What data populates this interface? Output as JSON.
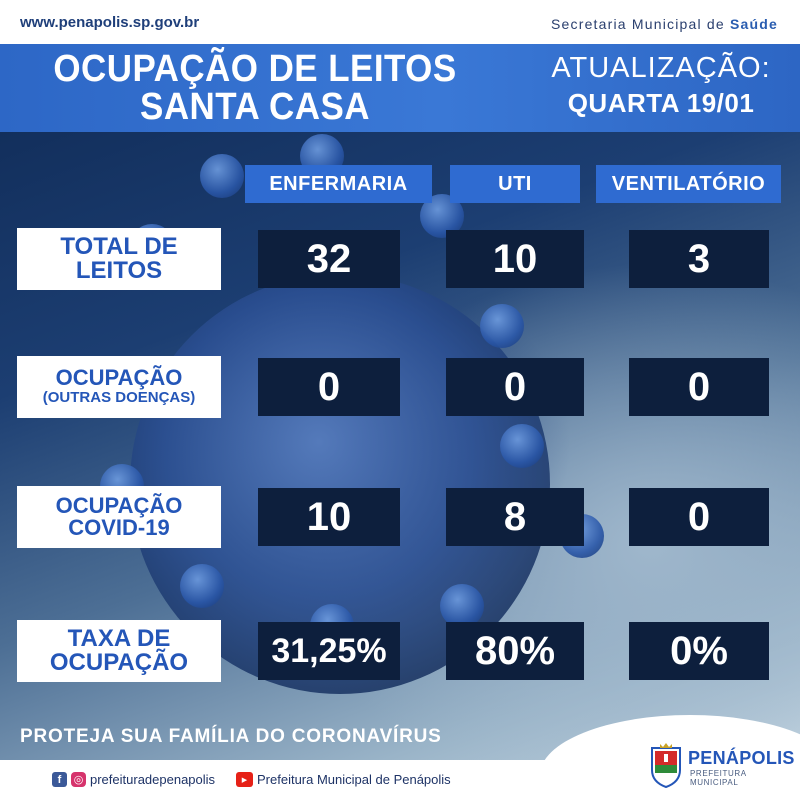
{
  "top": {
    "site_url": "www.penapolis.sp.gov.br",
    "secretaria_prefix": "Secretaria Municipal de ",
    "secretaria_highlight": "Saúde"
  },
  "header": {
    "title_line1": "OCUPAÇÃO DE LEITOS",
    "title_line2": "SANTA CASA",
    "update_label": "ATUALIZAÇÃO:",
    "update_date": "QUARTA 19/01"
  },
  "columns": [
    "ENFERMARIA",
    "UTI",
    "VENTILATÓRIO"
  ],
  "rows": [
    {
      "label_line1": "TOTAL DE",
      "label_line2": "LEITOS",
      "values": [
        "32",
        "10",
        "3"
      ]
    },
    {
      "label_line1": "OCUPAÇÃO",
      "label_line2": "(OUTRAS DOENÇAS)",
      "values": [
        "0",
        "0",
        "0"
      ]
    },
    {
      "label_line1": "OCUPAÇÃO",
      "label_line2": "COVID-19",
      "values": [
        "10",
        "8",
        "0"
      ]
    },
    {
      "label_line1": "TAXA DE",
      "label_line2": "OCUPAÇÃO",
      "values": [
        "31,25%",
        "80%",
        "0%"
      ]
    }
  ],
  "slogan": "PROTEJA SUA FAMÍLIA DO CORONAVÍRUS",
  "footer": {
    "social_handle": "prefeituradepenapolis",
    "youtube_channel": "Prefeitura Municipal de Penápolis",
    "logo_name": "PENÁPOLIS",
    "logo_sub": "PREFEITURA MUNICIPAL"
  },
  "colors": {
    "accent_blue": "#2f6bd1",
    "value_box": "#0d1f3d",
    "label_text": "#2456b8"
  }
}
